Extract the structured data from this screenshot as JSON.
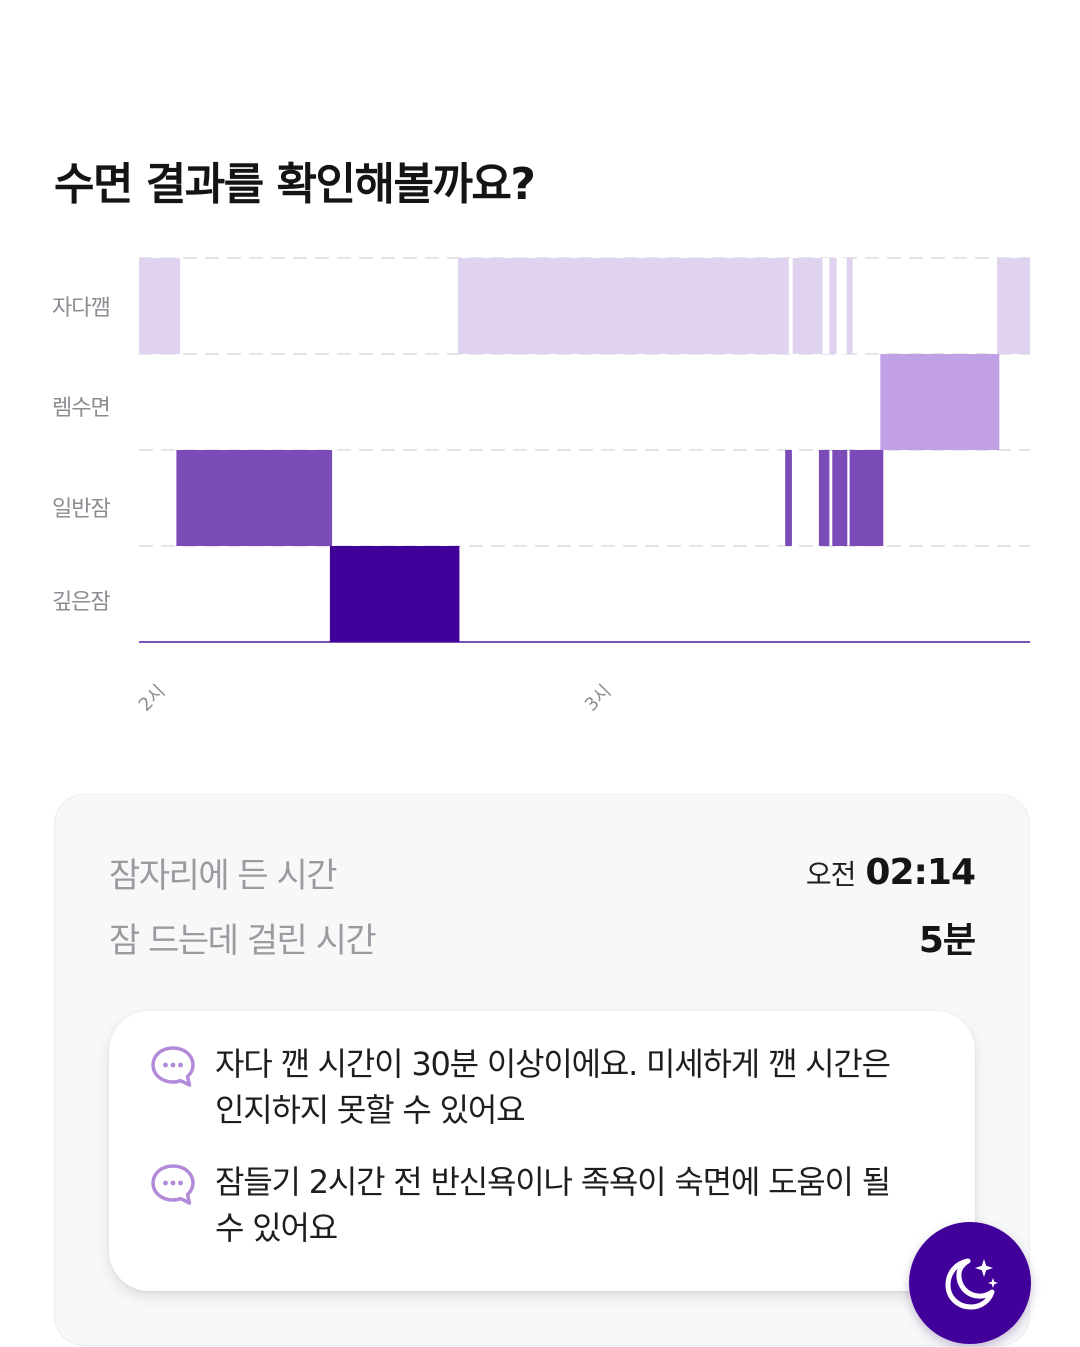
{
  "page": {
    "title": "수면 결과를 확인해볼까요?"
  },
  "chart_data": {
    "type": "bar",
    "subtype": "sleep-stage-timeline",
    "categories": [
      "자다깸",
      "렘수면",
      "일반잠",
      "깊은잠"
    ],
    "x_ticks": [
      "2시",
      "3시"
    ],
    "x_range_minutes": [
      0,
      119
    ],
    "grid": "dashed horizontal",
    "colors": {
      "자다깸": "#e0d3ef",
      "렘수면": "#c1a0e6",
      "일반잠": "#7b4bb8",
      "깊은잠": "#42009a"
    },
    "segments": [
      {
        "stage": "자다깸",
        "start": 0,
        "end": 5.5
      },
      {
        "stage": "일반잠",
        "start": 5,
        "end": 25.8
      },
      {
        "stage": "깊은잠",
        "start": 25.5,
        "end": 42.8
      },
      {
        "stage": "자다깸",
        "start": 42.6,
        "end": 86.8
      },
      {
        "stage": "일반잠",
        "start": 86.3,
        "end": 87.2
      },
      {
        "stage": "자다깸",
        "start": 87.3,
        "end": 91.3
      },
      {
        "stage": "일반잠",
        "start": 90.8,
        "end": 92.2
      },
      {
        "stage": "자다깸",
        "start": 92.2,
        "end": 93.2
      },
      {
        "stage": "일반잠",
        "start": 92.6,
        "end": 94.6
      },
      {
        "stage": "자다깸",
        "start": 94.5,
        "end": 95.3
      },
      {
        "stage": "일반잠",
        "start": 94.9,
        "end": 99.4
      },
      {
        "stage": "렘수면",
        "start": 99.0,
        "end": 114.9
      },
      {
        "stage": "자다깸",
        "start": 114.6,
        "end": 119
      }
    ]
  },
  "summary": {
    "bedtime_label": "잠자리에 든 시간",
    "bedtime_prefix": "오전",
    "bedtime_value": "02:14",
    "latency_label": "잠 드는데 걸린 시간",
    "latency_value": "5분"
  },
  "tips": [
    {
      "icon": "chat-bubble-icon",
      "text_line1": "자다 깬 시간이 30분 이상이에요. 미세하게 깬 시간은",
      "text_line2": "인지하지 못할 수 있어요"
    },
    {
      "icon": "chat-bubble-icon",
      "text_line1": "잠들기 2시간 전 반신욕이나 족욕이 숙면에 도움이 될",
      "text_line2": "수 있어요"
    }
  ],
  "fab": {
    "icon": "moon-stars-icon"
  }
}
